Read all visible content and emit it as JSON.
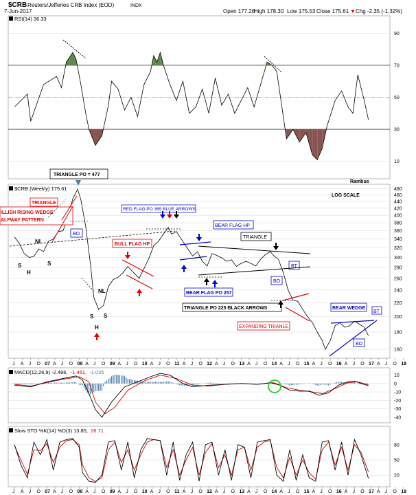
{
  "header": {
    "symbol": "$CRB",
    "name": "Reuters/Jefferies CRB Index (EOD)",
    "exchange": "INDX",
    "date": "7-Jun-2017",
    "open": "Open 177.28",
    "high": "High 178.30",
    "low": "Low 175.53",
    "close": "Close 175.61",
    "chg": "Chg -2.35 (-1.32%)",
    "chg_marker": "▼"
  },
  "colors": {
    "price": "#000000",
    "grid": "#d8d8d8",
    "rsi_overbought_fill": "#5e8a4e",
    "rsi_oversold_fill": "#8a5550",
    "macd_line": "#000000",
    "signal_line": "#d00000",
    "histogram": "#4a7fa8",
    "annotation_red": "#e00000",
    "annotation_blue": "#0000cc",
    "annotation_black": "#000000",
    "highlight_circle": "#22cc22"
  },
  "rsi_panel": {
    "legend": "RSI(14) 36.33",
    "watermark": "Rambus"
  },
  "price_panel": {
    "legend": "$CRB (Weekly) 175.61",
    "scale_label": "LOG SCALE"
  },
  "macd_panel": {
    "legend_main": "MACD(12,26,9) -2.496,",
    "legend_macd": "-1.461,",
    "legend_hist": "-1.035"
  },
  "sto_panel": {
    "legend_main": "Slow STO %K(14) %D(3) 13.85,",
    "legend_d": "26.71"
  },
  "annotations": {
    "triangle_po": "TRIANGLE  PO = 477",
    "bullish_wedge_1": "ILLISH RISING WEDGE",
    "bullish_wedge_2": "ALFWAY PATTERN",
    "triangle": "TRIANGLE",
    "bo": "BO",
    "nl1": "NL",
    "nl2": "NL",
    "s1": "S",
    "h1": "H",
    "s2": "S",
    "s3": "S",
    "h2": "H",
    "s4": "S",
    "red_flag": "RED FLAG PO 365 BLUE ARROWS",
    "bull_flag": "BULL FLAG HP",
    "bear_flag_hp": "BEAR FLAG HP",
    "bear_flag_po": "BEAR FLAG PO 257",
    "triangle2": "TRIANGLE",
    "bt1": "BT",
    "bo2": "BO",
    "triangle_po2": "TRIANGLE PO 225 BLACK ARROWS",
    "expanding": "EXPANDING TRIANLE",
    "bear_wedge": "BEAR WEDGE",
    "bt2": "BT",
    "bo3": "BO"
  },
  "chart_data": [
    {
      "type": "line",
      "title": "RSI(14) 36.33",
      "ylim": [
        0,
        100
      ],
      "y_ticks": [
        10,
        30,
        50,
        70,
        90
      ],
      "x": [
        2006.5,
        2006.9,
        2007.0,
        2007.4,
        2007.8,
        2007.95,
        2008.1,
        2008.3,
        2008.4,
        2008.55,
        2008.7,
        2008.8,
        2009.0,
        2009.2,
        2009.4,
        2009.5,
        2009.7,
        2009.9,
        2010.1,
        2010.3,
        2010.5,
        2010.7,
        2010.8,
        2010.9,
        2011.0,
        2011.1,
        2011.3,
        2011.5,
        2011.7,
        2011.9,
        2012.1,
        2012.3,
        2012.5,
        2012.7,
        2012.9,
        2013.1,
        2013.3,
        2013.5,
        2013.7,
        2013.9,
        2014.1,
        2014.3,
        2014.45,
        2014.6,
        2014.75,
        2014.9,
        2015.1,
        2015.3,
        2015.5,
        2015.7,
        2015.85,
        2016.0,
        2016.15,
        2016.4,
        2016.6,
        2016.8,
        2016.95,
        2017.1,
        2017.3,
        2017.43
      ],
      "values": [
        44,
        52,
        35,
        58,
        63,
        56,
        72,
        78,
        74,
        58,
        40,
        30,
        20,
        26,
        45,
        60,
        55,
        42,
        50,
        38,
        58,
        66,
        76,
        72,
        78,
        70,
        58,
        48,
        60,
        40,
        44,
        55,
        40,
        62,
        45,
        52,
        40,
        48,
        56,
        44,
        58,
        72,
        70,
        66,
        45,
        24,
        30,
        22,
        28,
        14,
        11,
        18,
        32,
        48,
        54,
        44,
        40,
        64,
        48,
        36
      ],
      "overbought": 70,
      "oversold": 30
    },
    {
      "type": "line",
      "title": "$CRB (Weekly) 175.61",
      "scale": "log",
      "ylim": [
        152,
        490
      ],
      "y_ticks": [
        160,
        180,
        200,
        220,
        240,
        260,
        280,
        300,
        320,
        340,
        360,
        380,
        400,
        420,
        440,
        460,
        480
      ],
      "x_ticks": [
        "J",
        "A",
        "J",
        "O",
        "07",
        "A",
        "J",
        "O",
        "08",
        "A",
        "J",
        "O",
        "09",
        "A",
        "J",
        "O",
        "10",
        "A",
        "J",
        "O",
        "11",
        "A",
        "J",
        "O",
        "12",
        "A",
        "J",
        "O",
        "13",
        "A",
        "J",
        "O",
        "14",
        "A",
        "J",
        "O",
        "15",
        "A",
        "J",
        "O",
        "16",
        "A",
        "J",
        "O",
        "17",
        "A",
        "J",
        "O",
        "18"
      ],
      "x": [
        2006.5,
        2006.65,
        2006.8,
        2006.95,
        2007.1,
        2007.25,
        2007.4,
        2007.55,
        2007.7,
        2007.85,
        2008.0,
        2008.15,
        2008.3,
        2008.45,
        2008.55,
        2008.7,
        2008.85,
        2008.95,
        2009.1,
        2009.25,
        2009.4,
        2009.55,
        2009.7,
        2009.85,
        2010.0,
        2010.15,
        2010.35,
        2010.5,
        2010.65,
        2010.8,
        2010.95,
        2011.1,
        2011.25,
        2011.35,
        2011.5,
        2011.65,
        2011.85,
        2012.0,
        2012.15,
        2012.3,
        2012.45,
        2012.6,
        2012.75,
        2012.9,
        2013.05,
        2013.2,
        2013.35,
        2013.5,
        2013.65,
        2013.8,
        2013.95,
        2014.1,
        2014.25,
        2014.4,
        2014.5,
        2014.65,
        2014.8,
        2014.95,
        2015.1,
        2015.25,
        2015.4,
        2015.55,
        2015.7,
        2015.85,
        2016.0,
        2016.1,
        2016.25,
        2016.4,
        2016.55,
        2016.7,
        2016.85,
        2017.0,
        2017.15,
        2017.3,
        2017.43
      ],
      "values": [
        345,
        330,
        308,
        300,
        302,
        318,
        312,
        335,
        340,
        358,
        360,
        392,
        448,
        478,
        445,
        370,
        285,
        228,
        210,
        216,
        246,
        258,
        262,
        270,
        282,
        272,
        260,
        278,
        298,
        325,
        335,
        352,
        368,
        352,
        358,
        340,
        318,
        303,
        312,
        292,
        283,
        308,
        304,
        299,
        292,
        295,
        282,
        288,
        292,
        288,
        283,
        296,
        306,
        312,
        304,
        296,
        270,
        240,
        224,
        222,
        210,
        200,
        192,
        180,
        170,
        160,
        170,
        188,
        192,
        186,
        188,
        194,
        190,
        186,
        175.61
      ]
    },
    {
      "type": "line",
      "title": "MACD(12,26,9) -2.496, -1.461, -1.035",
      "ylim": [
        -45,
        17
      ],
      "y_ticks": [
        -40,
        -30,
        -20,
        -10,
        0,
        10
      ],
      "series": [
        {
          "name": "MACD",
          "x": [
            2006.5,
            2007.0,
            2007.5,
            2008.0,
            2008.4,
            2008.6,
            2008.8,
            2009.0,
            2009.2,
            2009.5,
            2009.9,
            2010.3,
            2010.7,
            2011.0,
            2011.3,
            2011.7,
            2012.0,
            2012.5,
            2013.0,
            2013.5,
            2014.0,
            2014.4,
            2014.7,
            2015.0,
            2015.3,
            2015.6,
            2015.9,
            2016.2,
            2016.5,
            2016.8,
            2017.0,
            2017.2,
            2017.43
          ],
          "values": [
            -2,
            -4,
            2,
            6,
            9,
            4,
            -12,
            -31,
            -40,
            -22,
            -4,
            2,
            8,
            12,
            10,
            0,
            -4,
            -2,
            -1,
            0,
            -1,
            1,
            -2,
            -8,
            -9,
            -9,
            -14,
            -11,
            -2,
            2,
            3,
            0,
            -2.496
          ]
        },
        {
          "name": "Signal",
          "x": [
            2006.5,
            2007.0,
            2007.5,
            2008.0,
            2008.5,
            2008.8,
            2009.0,
            2009.3,
            2009.6,
            2010.0,
            2010.5,
            2011.0,
            2011.5,
            2012.0,
            2012.5,
            2013.0,
            2013.5,
            2014.0,
            2014.5,
            2014.9,
            2015.3,
            2015.7,
            2016.0,
            2016.4,
            2016.8,
            2017.1,
            2017.43
          ],
          "values": [
            -1,
            -3,
            1,
            5,
            8,
            2,
            -22,
            -36,
            -28,
            -8,
            3,
            10,
            6,
            -2,
            -3,
            -1,
            0,
            -1,
            1,
            -5,
            -8,
            -10,
            -12,
            -6,
            1,
            2,
            -1.461
          ]
        }
      ]
    },
    {
      "type": "line",
      "title": "Slow STO %K(14) %D(3) 13.85, 26.71",
      "ylim": [
        0,
        100
      ],
      "y_ticks": [
        20,
        50,
        80
      ],
      "series": [
        {
          "name": "%K",
          "x": [
            2006.5,
            2006.7,
            2006.9,
            2007.1,
            2007.3,
            2007.5,
            2007.7,
            2007.9,
            2008.1,
            2008.3,
            2008.5,
            2008.6,
            2008.8,
            2009.0,
            2009.2,
            2009.4,
            2009.6,
            2009.8,
            2010.0,
            2010.2,
            2010.4,
            2010.6,
            2010.8,
            2011.0,
            2011.2,
            2011.4,
            2011.6,
            2011.8,
            2012.0,
            2012.2,
            2012.4,
            2012.6,
            2012.8,
            2013.0,
            2013.2,
            2013.4,
            2013.6,
            2013.8,
            2014.0,
            2014.2,
            2014.4,
            2014.6,
            2014.8,
            2015.0,
            2015.2,
            2015.4,
            2015.6,
            2015.8,
            2016.0,
            2016.2,
            2016.4,
            2016.6,
            2016.8,
            2017.0,
            2017.2,
            2017.43
          ],
          "values": [
            80,
            40,
            15,
            85,
            60,
            90,
            30,
            85,
            90,
            92,
            75,
            25,
            8,
            6,
            20,
            85,
            88,
            30,
            85,
            15,
            70,
            92,
            90,
            88,
            20,
            85,
            10,
            60,
            85,
            8,
            80,
            85,
            20,
            70,
            10,
            80,
            75,
            15,
            85,
            88,
            90,
            20,
            8,
            70,
            10,
            60,
            15,
            8,
            85,
            88,
            30,
            85,
            20,
            90,
            60,
            13.85
          ]
        },
        {
          "name": "%D",
          "x": [
            2006.5,
            2006.7,
            2006.9,
            2007.1,
            2007.3,
            2007.5,
            2007.7,
            2007.9,
            2008.1,
            2008.3,
            2008.5,
            2008.6,
            2008.8,
            2009.0,
            2009.2,
            2009.4,
            2009.6,
            2009.8,
            2010.0,
            2010.2,
            2010.4,
            2010.6,
            2010.8,
            2011.0,
            2011.2,
            2011.4,
            2011.6,
            2011.8,
            2012.0,
            2012.2,
            2012.4,
            2012.6,
            2012.8,
            2013.0,
            2013.2,
            2013.4,
            2013.6,
            2013.8,
            2014.0,
            2014.2,
            2014.4,
            2014.6,
            2014.8,
            2015.0,
            2015.2,
            2015.4,
            2015.6,
            2015.8,
            2016.0,
            2016.2,
            2016.4,
            2016.6,
            2016.8,
            2017.0,
            2017.2,
            2017.43
          ],
          "values": [
            78,
            50,
            22,
            70,
            68,
            82,
            45,
            75,
            88,
            90,
            80,
            40,
            15,
            8,
            15,
            70,
            85,
            45,
            70,
            30,
            60,
            85,
            90,
            88,
            35,
            70,
            20,
            50,
            75,
            20,
            65,
            82,
            35,
            60,
            20,
            70,
            75,
            30,
            75,
            85,
            88,
            35,
            15,
            55,
            20,
            50,
            25,
            12,
            70,
            85,
            40,
            75,
            30,
            80,
            65,
            26.71
          ]
        }
      ]
    }
  ]
}
